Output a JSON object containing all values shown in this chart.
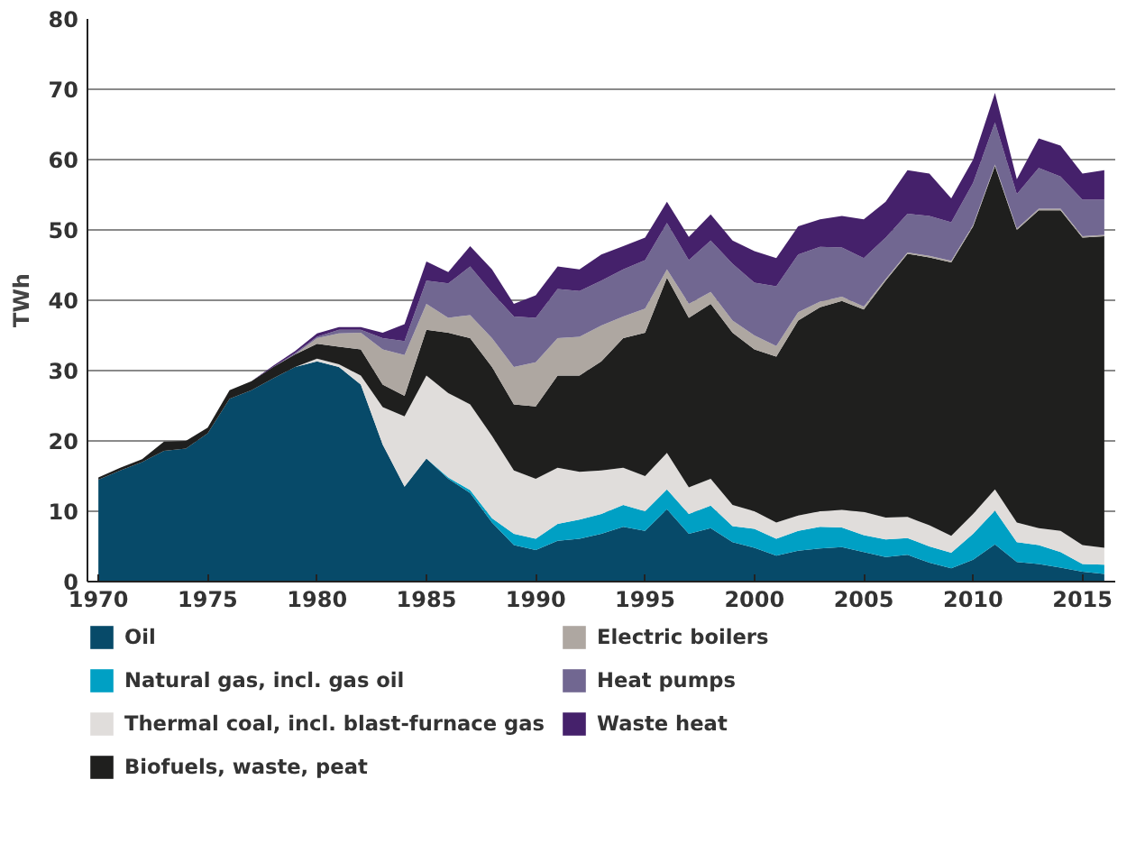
{
  "chart_data": {
    "type": "area",
    "stacked": true,
    "ylabel": "TWh",
    "x": [
      1970,
      1971,
      1972,
      1973,
      1974,
      1975,
      1976,
      1977,
      1978,
      1979,
      1980,
      1981,
      1982,
      1983,
      1984,
      1985,
      1986,
      1987,
      1988,
      1989,
      1990,
      1991,
      1992,
      1993,
      1994,
      1995,
      1996,
      1997,
      1998,
      1999,
      2000,
      2001,
      2002,
      2003,
      2004,
      2005,
      2006,
      2007,
      2008,
      2009,
      2010,
      2011,
      2012,
      2013,
      2014,
      2015,
      2016
    ],
    "xlim": [
      1969.5,
      2016.5
    ],
    "xticks": [
      1970,
      1975,
      1980,
      1985,
      1990,
      1995,
      2000,
      2005,
      2010,
      2015
    ],
    "ylim": [
      0,
      80
    ],
    "yticks": [
      0,
      10,
      20,
      30,
      40,
      50,
      60,
      70,
      80
    ],
    "grid": "y",
    "legend": "bottom",
    "series": [
      {
        "name": "Oil",
        "color": "#074a69",
        "values": [
          14.5,
          15.8,
          17,
          18.6,
          18.9,
          21.1,
          26,
          27.2,
          28.9,
          30.5,
          31.3,
          30.5,
          28,
          19.5,
          13.5,
          17.5,
          14.6,
          12.6,
          8.4,
          5.2,
          4.5,
          5.8,
          6.1,
          6.8,
          7.8,
          7.2,
          10.3,
          6.8,
          7.6,
          5.6,
          4.8,
          3.7,
          4.4,
          4.7,
          4.9,
          4.2,
          3.5,
          3.8,
          2.7,
          1.9,
          3.1,
          5.3,
          2.8,
          2.5,
          2,
          1.4,
          1.1
        ]
      },
      {
        "name": "Natural gas, incl. gas oil",
        "color": "#00a0c4",
        "values": [
          0,
          0,
          0,
          0,
          0,
          0,
          0,
          0,
          0,
          0,
          0,
          0,
          0,
          0,
          0,
          0,
          0.2,
          0.4,
          0.6,
          1.6,
          1.6,
          2.4,
          2.7,
          2.8,
          3.1,
          2.8,
          2.8,
          2.8,
          3.2,
          2.3,
          2.7,
          2.4,
          2.8,
          3.1,
          2.8,
          2.4,
          2.5,
          2.4,
          2.3,
          2.2,
          3.7,
          4.8,
          2.8,
          2.7,
          2.2,
          1.1,
          1.3
        ]
      },
      {
        "name": "Thermal coal, incl. blast-furnace gas",
        "color": "#e0dddb",
        "values": [
          0,
          0,
          0,
          0,
          0,
          0,
          0,
          0,
          0,
          0,
          0.4,
          0.4,
          1.3,
          5.3,
          10,
          11.8,
          12,
          12.2,
          11.7,
          9,
          8.5,
          8,
          6.8,
          6.2,
          5.3,
          5,
          5.2,
          3.8,
          3.8,
          3,
          2.5,
          2.3,
          2.2,
          2.2,
          2.5,
          3.3,
          3.1,
          3,
          3,
          2.4,
          2.8,
          3,
          2.8,
          2.4,
          3,
          2.7,
          2.4
        ]
      },
      {
        "name": "Biofuels, waste, peat",
        "color": "#1f1f1e",
        "values": [
          0.3,
          0.4,
          0.4,
          1.3,
          1.1,
          0.8,
          1.2,
          1.3,
          1.6,
          1.8,
          2.1,
          2.5,
          3.7,
          3.2,
          2.9,
          6.5,
          8.6,
          9.4,
          9.8,
          9.4,
          10.3,
          13.1,
          13.7,
          15.5,
          18.4,
          20.4,
          24.9,
          24.1,
          24.9,
          24.5,
          23,
          23.6,
          27.7,
          29,
          29.7,
          28.8,
          33.7,
          37.4,
          38.1,
          38.9,
          40.9,
          46,
          41.6,
          45.2,
          45.6,
          43.7,
          44.3
        ]
      },
      {
        "name": "Electric boilers",
        "color": "#aea7a1",
        "values": [
          0,
          0,
          0,
          0,
          0,
          0,
          0,
          0,
          0,
          0,
          0.8,
          1.9,
          2.4,
          5,
          5.8,
          3.7,
          2.1,
          3.3,
          4.1,
          5.3,
          6.3,
          5.3,
          5.5,
          5.1,
          3.1,
          3.4,
          1.2,
          2,
          1.7,
          1.7,
          2,
          1.5,
          1.2,
          0.8,
          0.6,
          0.4,
          0.2,
          0.2,
          0.2,
          0.2,
          0.2,
          0.2,
          0.2,
          0.2,
          0.2,
          0.2,
          0.2
        ]
      },
      {
        "name": "Heat pumps",
        "color": "#716791",
        "values": [
          0,
          0,
          0,
          0,
          0,
          0,
          0,
          0,
          0,
          0.2,
          0.2,
          0.5,
          0.4,
          1.6,
          2,
          3.3,
          4.9,
          6.9,
          6.5,
          7.2,
          6.3,
          7,
          6.5,
          6.4,
          6.7,
          6.9,
          6.6,
          6.2,
          7.3,
          8.1,
          7.5,
          8.5,
          8.2,
          7.8,
          7,
          6.9,
          5.9,
          5.5,
          5.7,
          5.5,
          6,
          6,
          4.9,
          5.8,
          4.6,
          5.2,
          5
        ]
      },
      {
        "name": "Waste heat",
        "color": "#45216b",
        "values": [
          0,
          0,
          0,
          0,
          0,
          0,
          0,
          0,
          0.2,
          0.3,
          0.5,
          0.4,
          0.4,
          0.8,
          2.4,
          2.7,
          1.6,
          2.9,
          3.3,
          1.8,
          3.2,
          3.2,
          3.1,
          3.7,
          3.3,
          3.2,
          3,
          3.3,
          3.7,
          3.3,
          4.5,
          4,
          4,
          3.9,
          4.5,
          5.5,
          5.1,
          6.2,
          6,
          3.4,
          3.3,
          4.2,
          2.1,
          4.2,
          4.4,
          3.7,
          4.2
        ]
      }
    ]
  }
}
